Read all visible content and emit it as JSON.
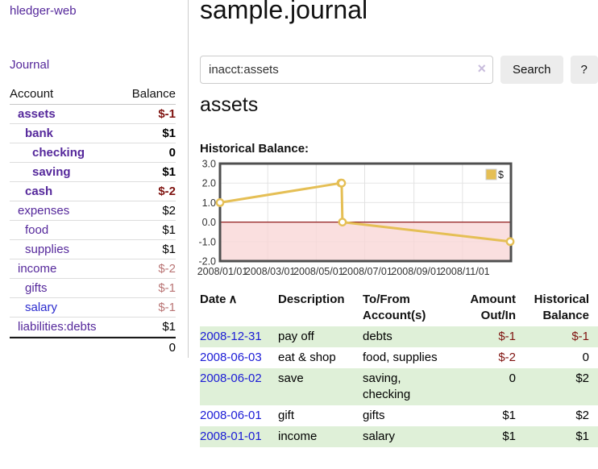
{
  "colors": {
    "link_purple": "#55289b",
    "link_blue": "#2a2ace",
    "negative_strong": "#7f1310",
    "negative_soft": "#b97474",
    "row_shade_green": "#dff0d8",
    "chart_line_gold": "#e5bf55",
    "chart_negative_region": "#f9d7d7",
    "chart_zero_line": "#8f1a1a"
  },
  "sidebar": {
    "app_title": "hledger-web",
    "journal_link": "Journal",
    "accounts_table": {
      "headers": {
        "account": "Account",
        "balance": "Balance"
      },
      "rows": [
        {
          "name": "assets",
          "level": 1,
          "bold": true,
          "balance": "$-1",
          "balance_style": "neg-strong"
        },
        {
          "name": "bank",
          "level": 2,
          "bold": true,
          "balance": "$1",
          "balance_style": "pos"
        },
        {
          "name": "checking",
          "level": 3,
          "bold": true,
          "balance": "0",
          "balance_style": "pos"
        },
        {
          "name": "saving",
          "level": 3,
          "bold": true,
          "balance": "$1",
          "balance_style": "pos"
        },
        {
          "name": "cash",
          "level": 2,
          "bold": true,
          "balance": "$-2",
          "balance_style": "neg-strong"
        },
        {
          "name": "expenses",
          "level": 1,
          "bold": false,
          "balance": "$2",
          "balance_style": "pos"
        },
        {
          "name": "food",
          "level": 2,
          "bold": false,
          "balance": "$1",
          "balance_style": "pos"
        },
        {
          "name": "supplies",
          "level": 2,
          "bold": false,
          "balance": "$1",
          "balance_style": "pos"
        },
        {
          "name": "income",
          "level": 1,
          "bold": false,
          "balance": "$-2",
          "balance_style": "neg-soft"
        },
        {
          "name": "gifts",
          "level": 2,
          "bold": false,
          "balance": "$-1",
          "balance_style": "neg-soft"
        },
        {
          "name": "salary",
          "level": 2,
          "bold": false,
          "balance": "$-1",
          "balance_style": "neg-soft",
          "link_color": "blue"
        },
        {
          "name": "liabilities:debts",
          "level": 1,
          "bold": false,
          "balance": "$1",
          "balance_style": "pos"
        }
      ],
      "total": "0"
    }
  },
  "main": {
    "title": "sample.journal",
    "search": {
      "value": "inacct:assets",
      "clear_icon": "×",
      "button_label": "Search",
      "help_label": "?"
    },
    "account_heading": "assets",
    "chart_label": "Historical Balance:"
  },
  "chart_data": {
    "type": "line",
    "title": "Historical Balance",
    "series": [
      {
        "name": "$",
        "points": [
          [
            "2008/01/01",
            1
          ],
          [
            "2008/06/01",
            2
          ],
          [
            "2008/06/02",
            2
          ],
          [
            "2008/06/03",
            0
          ],
          [
            "2008/12/31",
            -1
          ]
        ]
      }
    ],
    "x_range": [
      "2008/01/01",
      "2009/01/01"
    ],
    "x_ticks": [
      "2008/01/01",
      "2008/03/01",
      "2008/05/01",
      "2008/07/01",
      "2008/09/01",
      "2008/11/01"
    ],
    "y_ticks": [
      3.0,
      2.0,
      1.0,
      0.0,
      -1.0,
      -2.0
    ],
    "ylim": [
      -2.0,
      3.0
    ],
    "grid": true,
    "legend_position": "top-right",
    "negative_region_fill": "#f9d7d7",
    "line_color": "#e5bf55",
    "zero_line_color": "#8f1a1a"
  },
  "transactions": {
    "date_header": {
      "label": "Date",
      "sort_icon": "∧"
    },
    "headers": {
      "description": "Description",
      "accounts": "To/From\nAccount(s)",
      "amount": "Amount\nOut/In",
      "balance": "Historical\nBalance"
    },
    "rows": [
      {
        "date": "2008-12-31",
        "description": "pay off",
        "accounts": [
          "debts"
        ],
        "amount": "$-1",
        "amount_style": "amt-neg",
        "balance": "$-1",
        "balance_style": "amt-neg",
        "shade": true
      },
      {
        "date": "2008-06-03",
        "description": "eat & shop",
        "accounts": [
          "food, supplies"
        ],
        "amount": "$-2",
        "amount_style": "amt-neg",
        "balance": "0",
        "balance_style": "amt-pos",
        "shade": false
      },
      {
        "date": "2008-06-02",
        "description": "save",
        "accounts": [
          "saving,",
          "checking"
        ],
        "amount": "0",
        "amount_style": "amt-pos",
        "balance": "$2",
        "balance_style": "amt-pos",
        "shade": true
      },
      {
        "date": "2008-06-01",
        "description": "gift",
        "accounts": [
          "gifts"
        ],
        "amount": "$1",
        "amount_style": "amt-pos",
        "balance": "$2",
        "balance_style": "amt-pos",
        "shade": false
      },
      {
        "date": "2008-01-01",
        "description": "income",
        "accounts": [
          "salary"
        ],
        "amount": "$1",
        "amount_style": "amt-pos",
        "balance": "$1",
        "balance_style": "amt-pos",
        "shade": true
      }
    ]
  }
}
